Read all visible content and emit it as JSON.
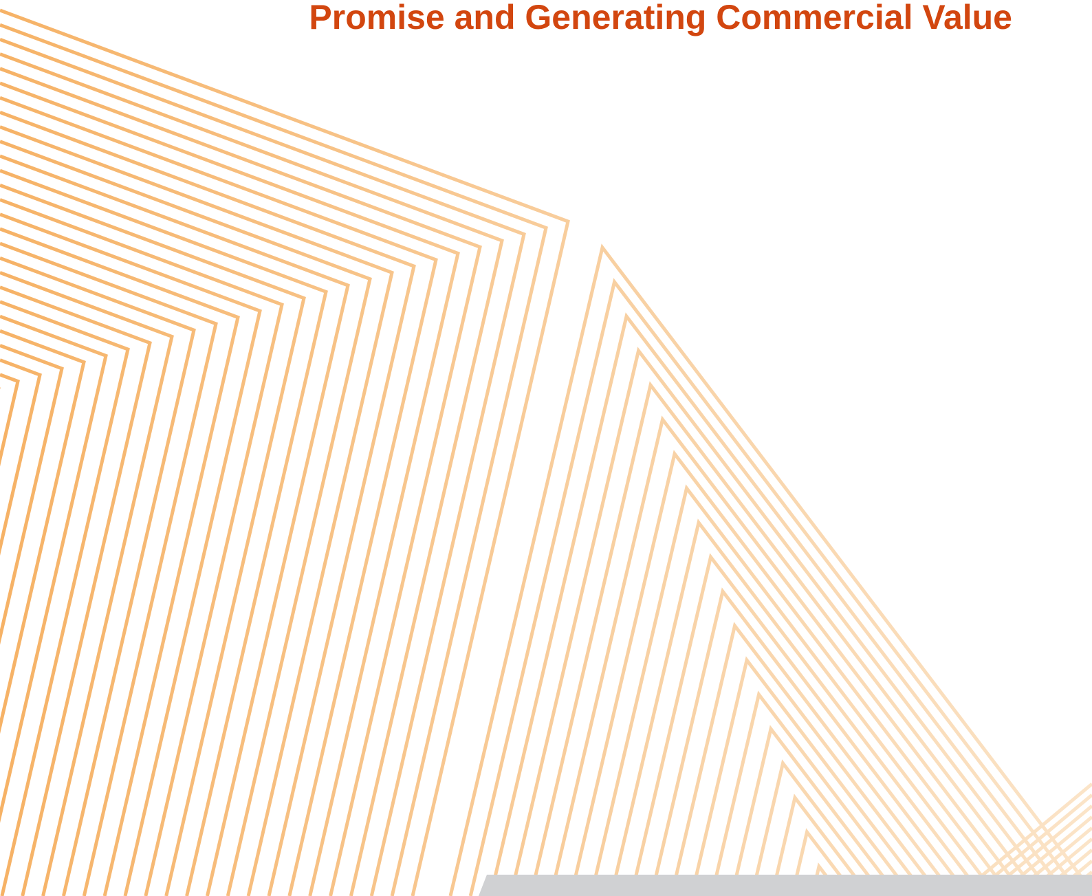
{
  "header": {
    "title": "Promise and Generating Commercial Value"
  }
}
